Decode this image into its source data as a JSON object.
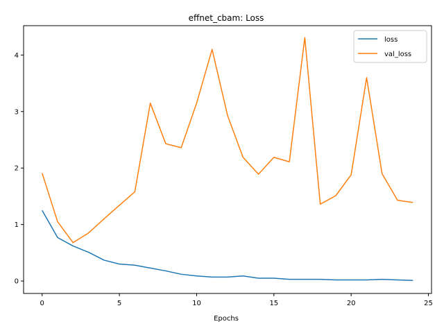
{
  "chart_data": {
    "type": "line",
    "title": "effnet_cbam: Loss",
    "xlabel": "Epochs",
    "ylabel": "",
    "x": [
      0,
      1,
      2,
      3,
      4,
      5,
      6,
      7,
      8,
      9,
      10,
      11,
      12,
      13,
      14,
      15,
      16,
      17,
      18,
      19,
      20,
      21,
      22,
      23,
      24
    ],
    "series": [
      {
        "name": "loss",
        "color": "#1f77b4",
        "values": [
          1.25,
          0.77,
          0.62,
          0.51,
          0.37,
          0.3,
          0.28,
          0.23,
          0.18,
          0.12,
          0.09,
          0.07,
          0.07,
          0.09,
          0.05,
          0.05,
          0.03,
          0.03,
          0.03,
          0.02,
          0.02,
          0.02,
          0.03,
          0.02,
          0.01
        ]
      },
      {
        "name": "val_loss",
        "color": "#ff7f0e",
        "values": [
          1.91,
          1.05,
          0.68,
          0.85,
          1.1,
          1.34,
          1.58,
          3.15,
          2.43,
          2.36,
          3.15,
          4.1,
          2.93,
          2.19,
          1.89,
          2.19,
          2.11,
          4.31,
          1.36,
          1.51,
          1.88,
          3.6,
          1.9,
          1.43,
          1.39
        ]
      }
    ],
    "xlim": [
      -1.2,
      25.2
    ],
    "ylim": [
      -0.22,
      4.52
    ],
    "xticks": [
      0,
      5,
      10,
      15,
      20,
      25
    ],
    "yticks": [
      0,
      1,
      2,
      3,
      4
    ],
    "legend": "top-right",
    "grid": false
  }
}
